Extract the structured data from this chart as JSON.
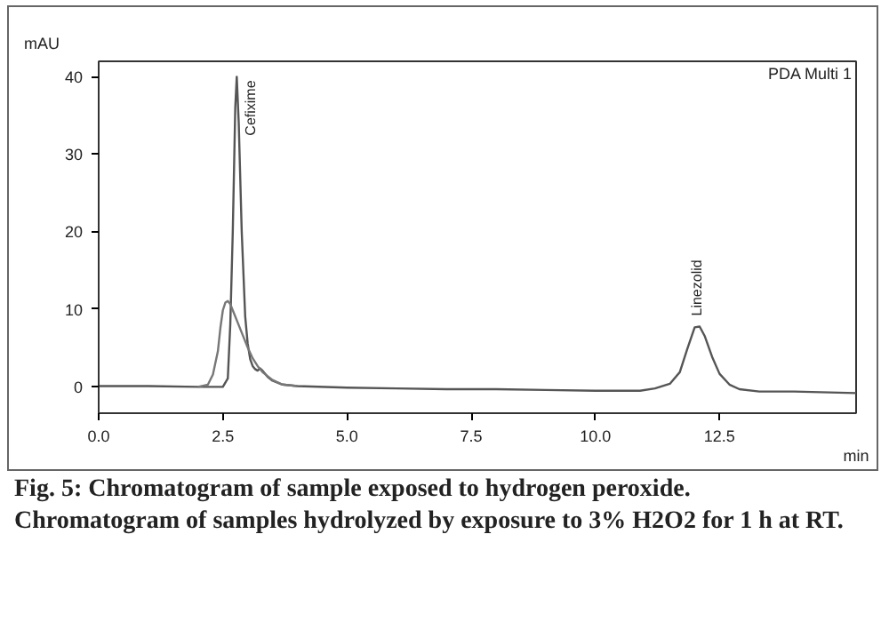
{
  "chart_data": {
    "type": "line",
    "title": "Fig. 5: Chromatogram of sample exposed to hydrogen peroxide. Chromatogram of samples hydrolyzed by exposure to 3% H2O2 for 1 h at RT.",
    "xlabel": "min",
    "ylabel": "mAU",
    "xlim": [
      0,
      15.25
    ],
    "ylim": [
      -3.5,
      42
    ],
    "xticks": [
      {
        "value": 0,
        "label": "0.0"
      },
      {
        "value": 2.5,
        "label": "2.5"
      },
      {
        "value": 5,
        "label": "5.0"
      },
      {
        "value": 7.5,
        "label": "7.5"
      },
      {
        "value": 10,
        "label": "10.0"
      },
      {
        "value": 12.5,
        "label": "12.5"
      }
    ],
    "yticks": [
      0,
      10,
      20,
      30,
      40
    ],
    "grid": false,
    "annotations": [
      "PDA Multi 1",
      {
        "text": "Cefixime",
        "x": 2.78,
        "y": 40
      },
      {
        "text": "Linezolid",
        "x": 12.05,
        "y": 7.7
      }
    ],
    "series": [
      {
        "color": "#555555",
        "x": [
          0,
          1,
          2,
          2.5,
          2.6,
          2.65,
          2.7,
          2.75,
          2.78,
          2.82,
          2.88,
          2.95,
          3.0,
          3.05,
          3.1,
          3.15,
          3.2,
          3.25,
          3.3,
          3.4,
          3.5,
          3.7,
          4,
          5,
          6,
          7,
          8,
          9,
          10,
          10.9,
          11.2,
          11.5,
          11.7,
          11.85,
          12.0,
          12.1,
          12.2,
          12.35,
          12.5,
          12.7,
          12.9,
          13.3,
          14,
          15.25
        ],
        "values": [
          0,
          0,
          -0.1,
          -0.1,
          1,
          8,
          20,
          36,
          40,
          34,
          20,
          9,
          5.5,
          3.5,
          2.6,
          2.2,
          2.0,
          2.3,
          2.0,
          1.2,
          0.7,
          0.2,
          0,
          -0.2,
          -0.3,
          -0.4,
          -0.4,
          -0.5,
          -0.6,
          -0.6,
          -0.3,
          0.3,
          1.8,
          4.8,
          7.6,
          7.7,
          6.5,
          3.8,
          1.6,
          0.2,
          -0.4,
          -0.7,
          -0.7,
          -0.9
        ]
      },
      {
        "color": "#777777",
        "x": [
          2.0,
          2.2,
          2.3,
          2.4,
          2.45,
          2.5,
          2.55,
          2.6,
          2.65,
          2.7,
          2.8,
          2.9,
          3.0,
          3.1,
          3.2,
          3.3,
          3.5,
          3.7,
          4.0
        ],
        "values": [
          -0.1,
          0.2,
          1.5,
          4.5,
          7.5,
          9.8,
          10.8,
          11.0,
          10.6,
          9.8,
          8.2,
          6.6,
          5.0,
          3.6,
          2.6,
          1.8,
          0.8,
          0.2,
          0
        ]
      }
    ]
  }
}
